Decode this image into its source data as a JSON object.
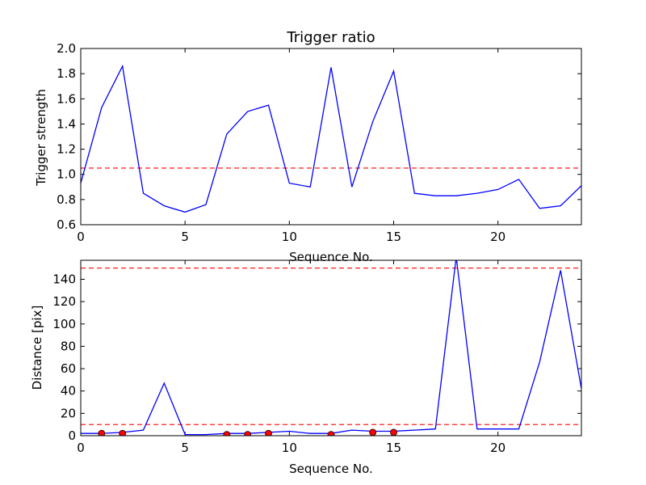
{
  "chart_data": [
    {
      "type": "line",
      "title": "Trigger ratio",
      "xlabel": "Sequence No.",
      "ylabel": "Trigger strength",
      "xlim": [
        0,
        24
      ],
      "ylim": [
        0.6,
        2.0
      ],
      "xticks": [
        "0",
        "5",
        "10",
        "15",
        "20"
      ],
      "yticks": [
        "0.6",
        "0.8",
        "1.0",
        "1.2",
        "1.4",
        "1.6",
        "1.8",
        "2.0"
      ],
      "grid": false,
      "threshold": {
        "y": 1.05,
        "color": "#ff0000",
        "style": "dashed"
      },
      "series": [
        {
          "color": "#0000ff",
          "x": [
            0,
            1,
            2,
            3,
            4,
            5,
            6,
            7,
            8,
            9,
            10,
            11,
            12,
            13,
            14,
            15,
            16,
            17,
            18,
            19,
            20,
            21,
            22,
            23,
            24
          ],
          "y": [
            0.93,
            1.53,
            1.86,
            0.85,
            0.75,
            0.7,
            0.76,
            1.32,
            1.5,
            1.55,
            0.93,
            0.9,
            1.85,
            0.9,
            1.42,
            1.82,
            0.85,
            0.83,
            0.83,
            0.85,
            0.88,
            0.96,
            0.73,
            0.75,
            0.91
          ]
        }
      ]
    },
    {
      "type": "line",
      "title": "",
      "xlabel": "Sequence No.",
      "ylabel": "Distance [pix]",
      "xlim": [
        0,
        24
      ],
      "ylim": [
        0,
        157
      ],
      "xticks": [
        "0",
        "5",
        "10",
        "15",
        "20"
      ],
      "yticks": [
        "0",
        "20",
        "40",
        "60",
        "80",
        "100",
        "120",
        "140"
      ],
      "grid": false,
      "thresholds": [
        {
          "y": 10,
          "color": "#ff0000",
          "style": "dashed"
        },
        {
          "y": 150,
          "color": "#ff0000",
          "style": "dashed"
        }
      ],
      "series": [
        {
          "color": "#0000ff",
          "x": [
            0,
            1,
            2,
            3,
            4,
            5,
            6,
            7,
            8,
            9,
            10,
            11,
            12,
            13,
            14,
            15,
            16,
            17,
            18,
            19,
            20,
            21,
            22,
            23,
            24
          ],
          "y": [
            2,
            2,
            3,
            5,
            47,
            1,
            1,
            2,
            2,
            3,
            4,
            2,
            2,
            5,
            4,
            4,
            5,
            6,
            160,
            6,
            6,
            6,
            66,
            148,
            42
          ]
        }
      ],
      "markers": {
        "color": "#ff0000",
        "x": [
          1,
          2,
          7,
          8,
          9,
          12,
          14,
          15
        ],
        "y": [
          2,
          2,
          1,
          1,
          2,
          1,
          3,
          3
        ]
      }
    }
  ]
}
